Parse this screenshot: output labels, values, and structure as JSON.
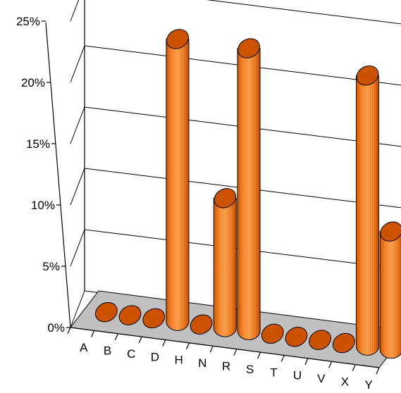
{
  "chart_data": {
    "type": "bar",
    "style": "3d-cylinder",
    "categories": [
      "A",
      "B",
      "C",
      "D",
      "H",
      "N",
      "R",
      "S",
      "T",
      "U",
      "V",
      "X",
      "Y"
    ],
    "values": [
      0,
      0,
      0,
      24,
      0,
      11,
      24,
      0,
      0,
      0,
      0,
      23,
      10
    ],
    "ylim": [
      0,
      25
    ],
    "yticks": [
      "0%",
      "5%",
      "10%",
      "15%",
      "20%",
      "25%"
    ],
    "title": "",
    "xlabel": "",
    "ylabel": "",
    "grid": true,
    "legend": "none",
    "colors": {
      "bar_body": "#ff8c3a",
      "bar_top": "#cc5200",
      "floor": "#c0c0c0",
      "axis": "#000000"
    }
  }
}
